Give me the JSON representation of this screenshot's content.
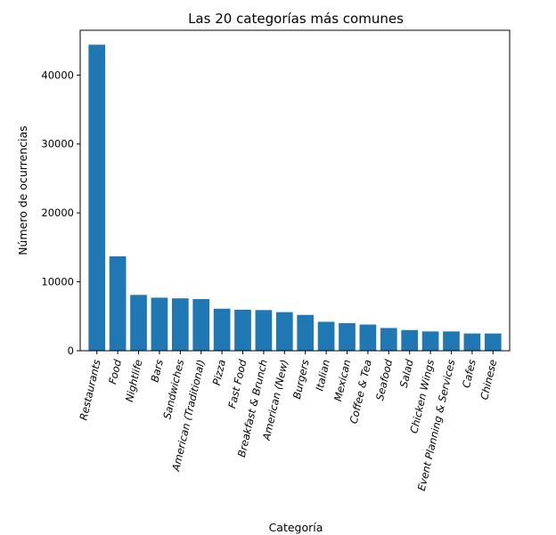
{
  "chart_data": {
    "type": "bar",
    "title": "Las 20 categorías más comunes",
    "xlabel": "Categoría",
    "ylabel": "Número de ocurrencias",
    "ylim": [
      0,
      46500
    ],
    "yticks": [
      "0",
      "10000",
      "20000",
      "30000",
      "40000"
    ],
    "grid": false,
    "bar_color": "#1f77b4",
    "categories": [
      "Restaurants",
      "Food",
      "Nightlife",
      "Bars",
      "Sandwiches",
      "American (Traditional)",
      "Pizza",
      "Fast Food",
      "Breakfast & Brunch",
      "American (New)",
      "Burgers",
      "Italian",
      "Mexican",
      "Coffee & Tea",
      "Seafood",
      "Salad",
      "Chicken Wings",
      "Event Planning & Services",
      "Cafes",
      "Chinese"
    ],
    "values": [
      44400,
      13700,
      8100,
      7700,
      7600,
      7500,
      6100,
      5950,
      5900,
      5600,
      5200,
      4200,
      4000,
      3800,
      3300,
      3000,
      2800,
      2800,
      2500,
      2500
    ]
  }
}
